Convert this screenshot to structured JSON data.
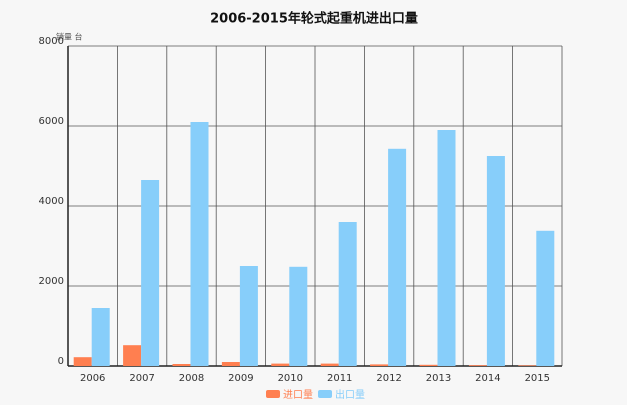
{
  "chart_data": {
    "type": "bar",
    "title": "2006-2015年轮式起重机进出口量",
    "y_label": "销量 台",
    "categories": [
      "2006",
      "2007",
      "2008",
      "2009",
      "2010",
      "2011",
      "2012",
      "2013",
      "2014",
      "2015"
    ],
    "series": [
      {
        "name": "进口量",
        "color": "#ff7f50",
        "values": [
          220,
          520,
          50,
          100,
          60,
          60,
          40,
          30,
          20,
          15
        ]
      },
      {
        "name": "出口量",
        "color": "#87cefa",
        "values": [
          1450,
          4650,
          6100,
          2500,
          2480,
          3600,
          5430,
          5900,
          5250,
          3380
        ]
      }
    ],
    "ylim": [
      0,
      8000
    ],
    "yticks": [
      0,
      2000,
      4000,
      6000,
      8000
    ],
    "grid": true
  }
}
